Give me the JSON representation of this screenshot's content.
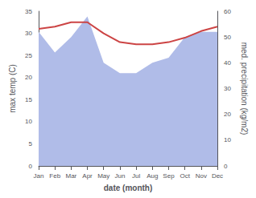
{
  "chart_data": {
    "type": "line",
    "categories": [
      "Jan",
      "Feb",
      "Mar",
      "Apr",
      "May",
      "Jun",
      "Jul",
      "Aug",
      "Sep",
      "Oct",
      "Nov",
      "Dec"
    ],
    "series": [
      {
        "type": "area",
        "color": "#b0bce8",
        "axis": "y2",
        "values": [
          52,
          44,
          50,
          58,
          40,
          36,
          36,
          40,
          42,
          50,
          52,
          52
        ]
      },
      {
        "type": "line",
        "color": "#cc4444",
        "values": [
          31.0,
          31.5,
          32.5,
          32.5,
          30.0,
          28.0,
          27.5,
          27.5,
          28.0,
          29.0,
          30.5,
          31.5
        ]
      }
    ],
    "xlabel": "date (month)",
    "ylabel": "max temp (C)",
    "y2label": "med. precipitation (kg/m2)",
    "ylim": [
      0,
      35
    ],
    "yticks": [
      0,
      5,
      10,
      15,
      20,
      25,
      30,
      35
    ],
    "y2lim": [
      0,
      60
    ],
    "y2ticks": [
      0,
      10,
      20,
      30,
      40,
      50,
      60
    ],
    "grid": false
  }
}
